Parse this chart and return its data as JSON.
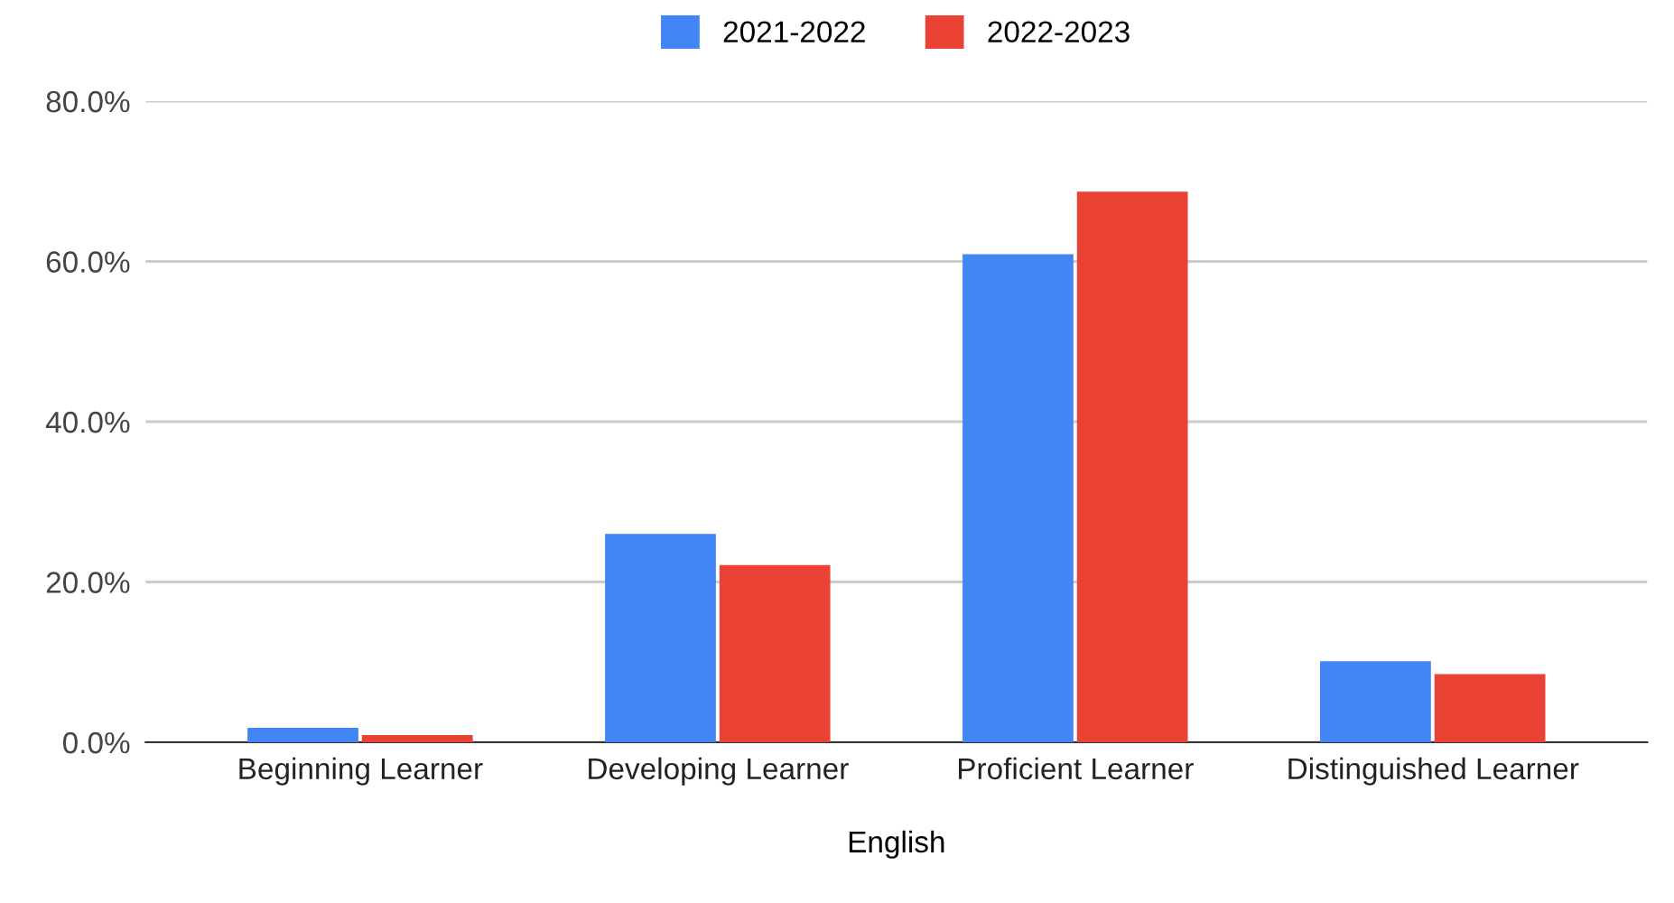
{
  "chart_data": {
    "type": "bar",
    "xlabel": "English",
    "categories": [
      "Beginning Learner",
      "Developing Learner",
      "Proficient Learner",
      "Distinguished Learner"
    ],
    "series": [
      {
        "name": "2021-2022",
        "color": "#4285f4",
        "values": [
          1.8,
          26.0,
          60.9,
          10.1
        ]
      },
      {
        "name": "2022-2023",
        "color": "#ea4335",
        "values": [
          0.9,
          22.1,
          68.7,
          8.5
        ]
      }
    ],
    "ylim": [
      0,
      80
    ],
    "yticks": [
      {
        "value": 0,
        "label": "0.0%"
      },
      {
        "value": 20,
        "label": "20.0%"
      },
      {
        "value": 40,
        "label": "40.0%"
      },
      {
        "value": 60,
        "label": "60.0%"
      },
      {
        "value": 80,
        "label": "80.0%"
      }
    ],
    "grid": "y",
    "legend": "top"
  }
}
